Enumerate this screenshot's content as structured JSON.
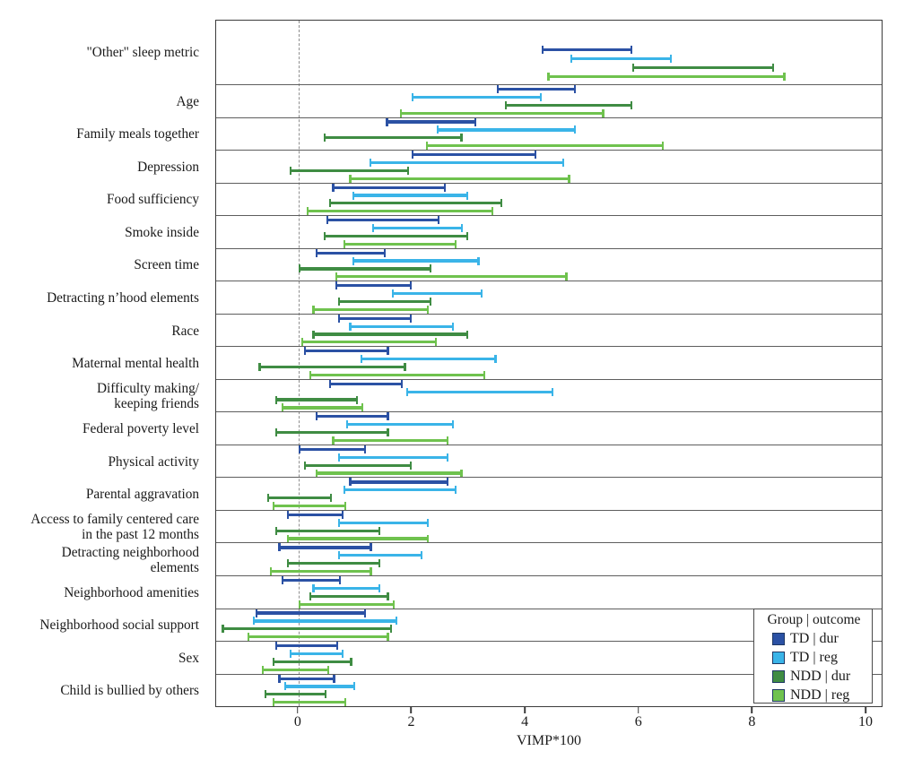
{
  "figure": {
    "xlabel": "VIMP*100",
    "legend": {
      "title": "Group | outcome",
      "entries": [
        {
          "label": "TD | dur",
          "color": "#2b51a4"
        },
        {
          "label": "TD | reg",
          "color": "#3ab4e8"
        },
        {
          "label": "NDD | dur",
          "color": "#3f8c43"
        },
        {
          "label": "NDD | reg",
          "color": "#6fc24e"
        }
      ]
    }
  },
  "chart_data": {
    "type": "bar",
    "variant": "horizontal_interval_errorbar",
    "title": "",
    "xlabel": "VIMP*100",
    "ylabel": "",
    "xlim": [
      -1.45,
      10.3
    ],
    "xticks": [
      0,
      2,
      4,
      6,
      8,
      10
    ],
    "zero_reference_line": 0,
    "grid": false,
    "row_separators": true,
    "legend_position": "inside lower right",
    "legend_title": "Group | outcome",
    "categories": [
      "\"Other\" sleep metric",
      "Age",
      "Family meals together",
      "Depression",
      "Food sufficiency",
      "Smoke inside",
      "Screen time",
      "Detracting n’hood elements",
      "Race",
      "Maternal mental health",
      "Difficulty making/ keeping friends",
      "Federal poverty level",
      "Physical activity",
      "Parental aggravation",
      "Access to family centered care in the past 12 months",
      "Detracting neighborhood elements",
      "Neighborhood amenities",
      "Neighborhood social support",
      "Sex",
      "Child is bullied by others"
    ],
    "category_label_lines": [
      [
        "\"Other\" sleep metric"
      ],
      [
        "Age"
      ],
      [
        "Family meals together"
      ],
      [
        "Depression"
      ],
      [
        "Food sufficiency"
      ],
      [
        "Smoke inside"
      ],
      [
        "Screen time"
      ],
      [
        "Detracting n’hood elements"
      ],
      [
        "Race"
      ],
      [
        "Maternal mental health"
      ],
      [
        "Difficulty making/",
        "keeping friends"
      ],
      [
        "Federal poverty level"
      ],
      [
        "Physical activity"
      ],
      [
        "Parental aggravation"
      ],
      [
        "Access to family centered care",
        "in the past 12 months"
      ],
      [
        "Detracting neighborhood",
        "elements"
      ],
      [
        "Neighborhood amenities"
      ],
      [
        "Neighborhood social support"
      ],
      [
        "Sex"
      ],
      [
        "Child is bullied by others"
      ]
    ],
    "series": [
      {
        "name": "TD | dur",
        "color": "#2b51a4",
        "intervals": [
          [
            4.3,
            5.9
          ],
          [
            3.5,
            4.9
          ],
          [
            1.55,
            3.15
          ],
          [
            2.0,
            4.2
          ],
          [
            0.6,
            2.6
          ],
          [
            0.5,
            2.5
          ],
          [
            0.3,
            1.55
          ],
          [
            0.65,
            2.0
          ],
          [
            0.7,
            2.0
          ],
          [
            0.1,
            1.6
          ],
          [
            0.55,
            1.85
          ],
          [
            0.3,
            1.6
          ],
          [
            0.0,
            1.2
          ],
          [
            0.9,
            2.65
          ],
          [
            -0.2,
            0.8
          ],
          [
            -0.35,
            1.3
          ],
          [
            -0.3,
            0.75
          ],
          [
            -0.75,
            1.2
          ],
          [
            -0.4,
            0.7
          ],
          [
            -0.35,
            0.65
          ]
        ]
      },
      {
        "name": "TD | reg",
        "color": "#3ab4e8",
        "intervals": [
          [
            4.8,
            6.6
          ],
          [
            2.0,
            4.3
          ],
          [
            2.45,
            4.9
          ],
          [
            1.25,
            4.7
          ],
          [
            0.95,
            3.0
          ],
          [
            1.3,
            2.9
          ],
          [
            0.95,
            3.2
          ],
          [
            1.65,
            3.25
          ],
          [
            0.9,
            2.75
          ],
          [
            1.1,
            3.5
          ],
          [
            1.9,
            4.5
          ],
          [
            0.85,
            2.75
          ],
          [
            0.7,
            2.65
          ],
          [
            0.8,
            2.8
          ],
          [
            0.7,
            2.3
          ],
          [
            0.7,
            2.2
          ],
          [
            0.25,
            1.45
          ],
          [
            -0.8,
            1.75
          ],
          [
            -0.15,
            0.8
          ],
          [
            -0.25,
            1.0
          ]
        ]
      },
      {
        "name": "NDD | dur",
        "color": "#3f8c43",
        "intervals": [
          [
            5.9,
            8.4
          ],
          [
            3.65,
            5.9
          ],
          [
            0.45,
            2.9
          ],
          [
            -0.15,
            1.95
          ],
          [
            0.55,
            3.6
          ],
          [
            0.45,
            3.0
          ],
          [
            0.0,
            2.35
          ],
          [
            0.7,
            2.35
          ],
          [
            0.25,
            3.0
          ],
          [
            -0.7,
            1.9
          ],
          [
            -0.4,
            1.05
          ],
          [
            -0.4,
            1.6
          ],
          [
            0.1,
            2.0
          ],
          [
            -0.55,
            0.6
          ],
          [
            -0.4,
            1.45
          ],
          [
            -0.2,
            1.45
          ],
          [
            0.2,
            1.6
          ],
          [
            -1.35,
            1.65
          ],
          [
            -0.45,
            0.95
          ],
          [
            -0.6,
            0.5
          ]
        ]
      },
      {
        "name": "NDD | reg",
        "color": "#6fc24e",
        "intervals": [
          [
            4.4,
            8.6
          ],
          [
            1.8,
            5.4
          ],
          [
            2.25,
            6.45
          ],
          [
            0.9,
            4.8
          ],
          [
            0.15,
            3.45
          ],
          [
            0.8,
            2.8
          ],
          [
            0.65,
            4.75
          ],
          [
            0.25,
            2.3
          ],
          [
            0.05,
            2.45
          ],
          [
            0.2,
            3.3
          ],
          [
            -0.3,
            1.15
          ],
          [
            0.6,
            2.65
          ],
          [
            0.3,
            2.9
          ],
          [
            -0.45,
            0.85
          ],
          [
            -0.2,
            2.3
          ],
          [
            -0.5,
            1.3
          ],
          [
            0.0,
            1.7
          ],
          [
            -0.9,
            1.6
          ],
          [
            -0.65,
            0.55
          ],
          [
            -0.45,
            0.85
          ]
        ]
      }
    ]
  }
}
